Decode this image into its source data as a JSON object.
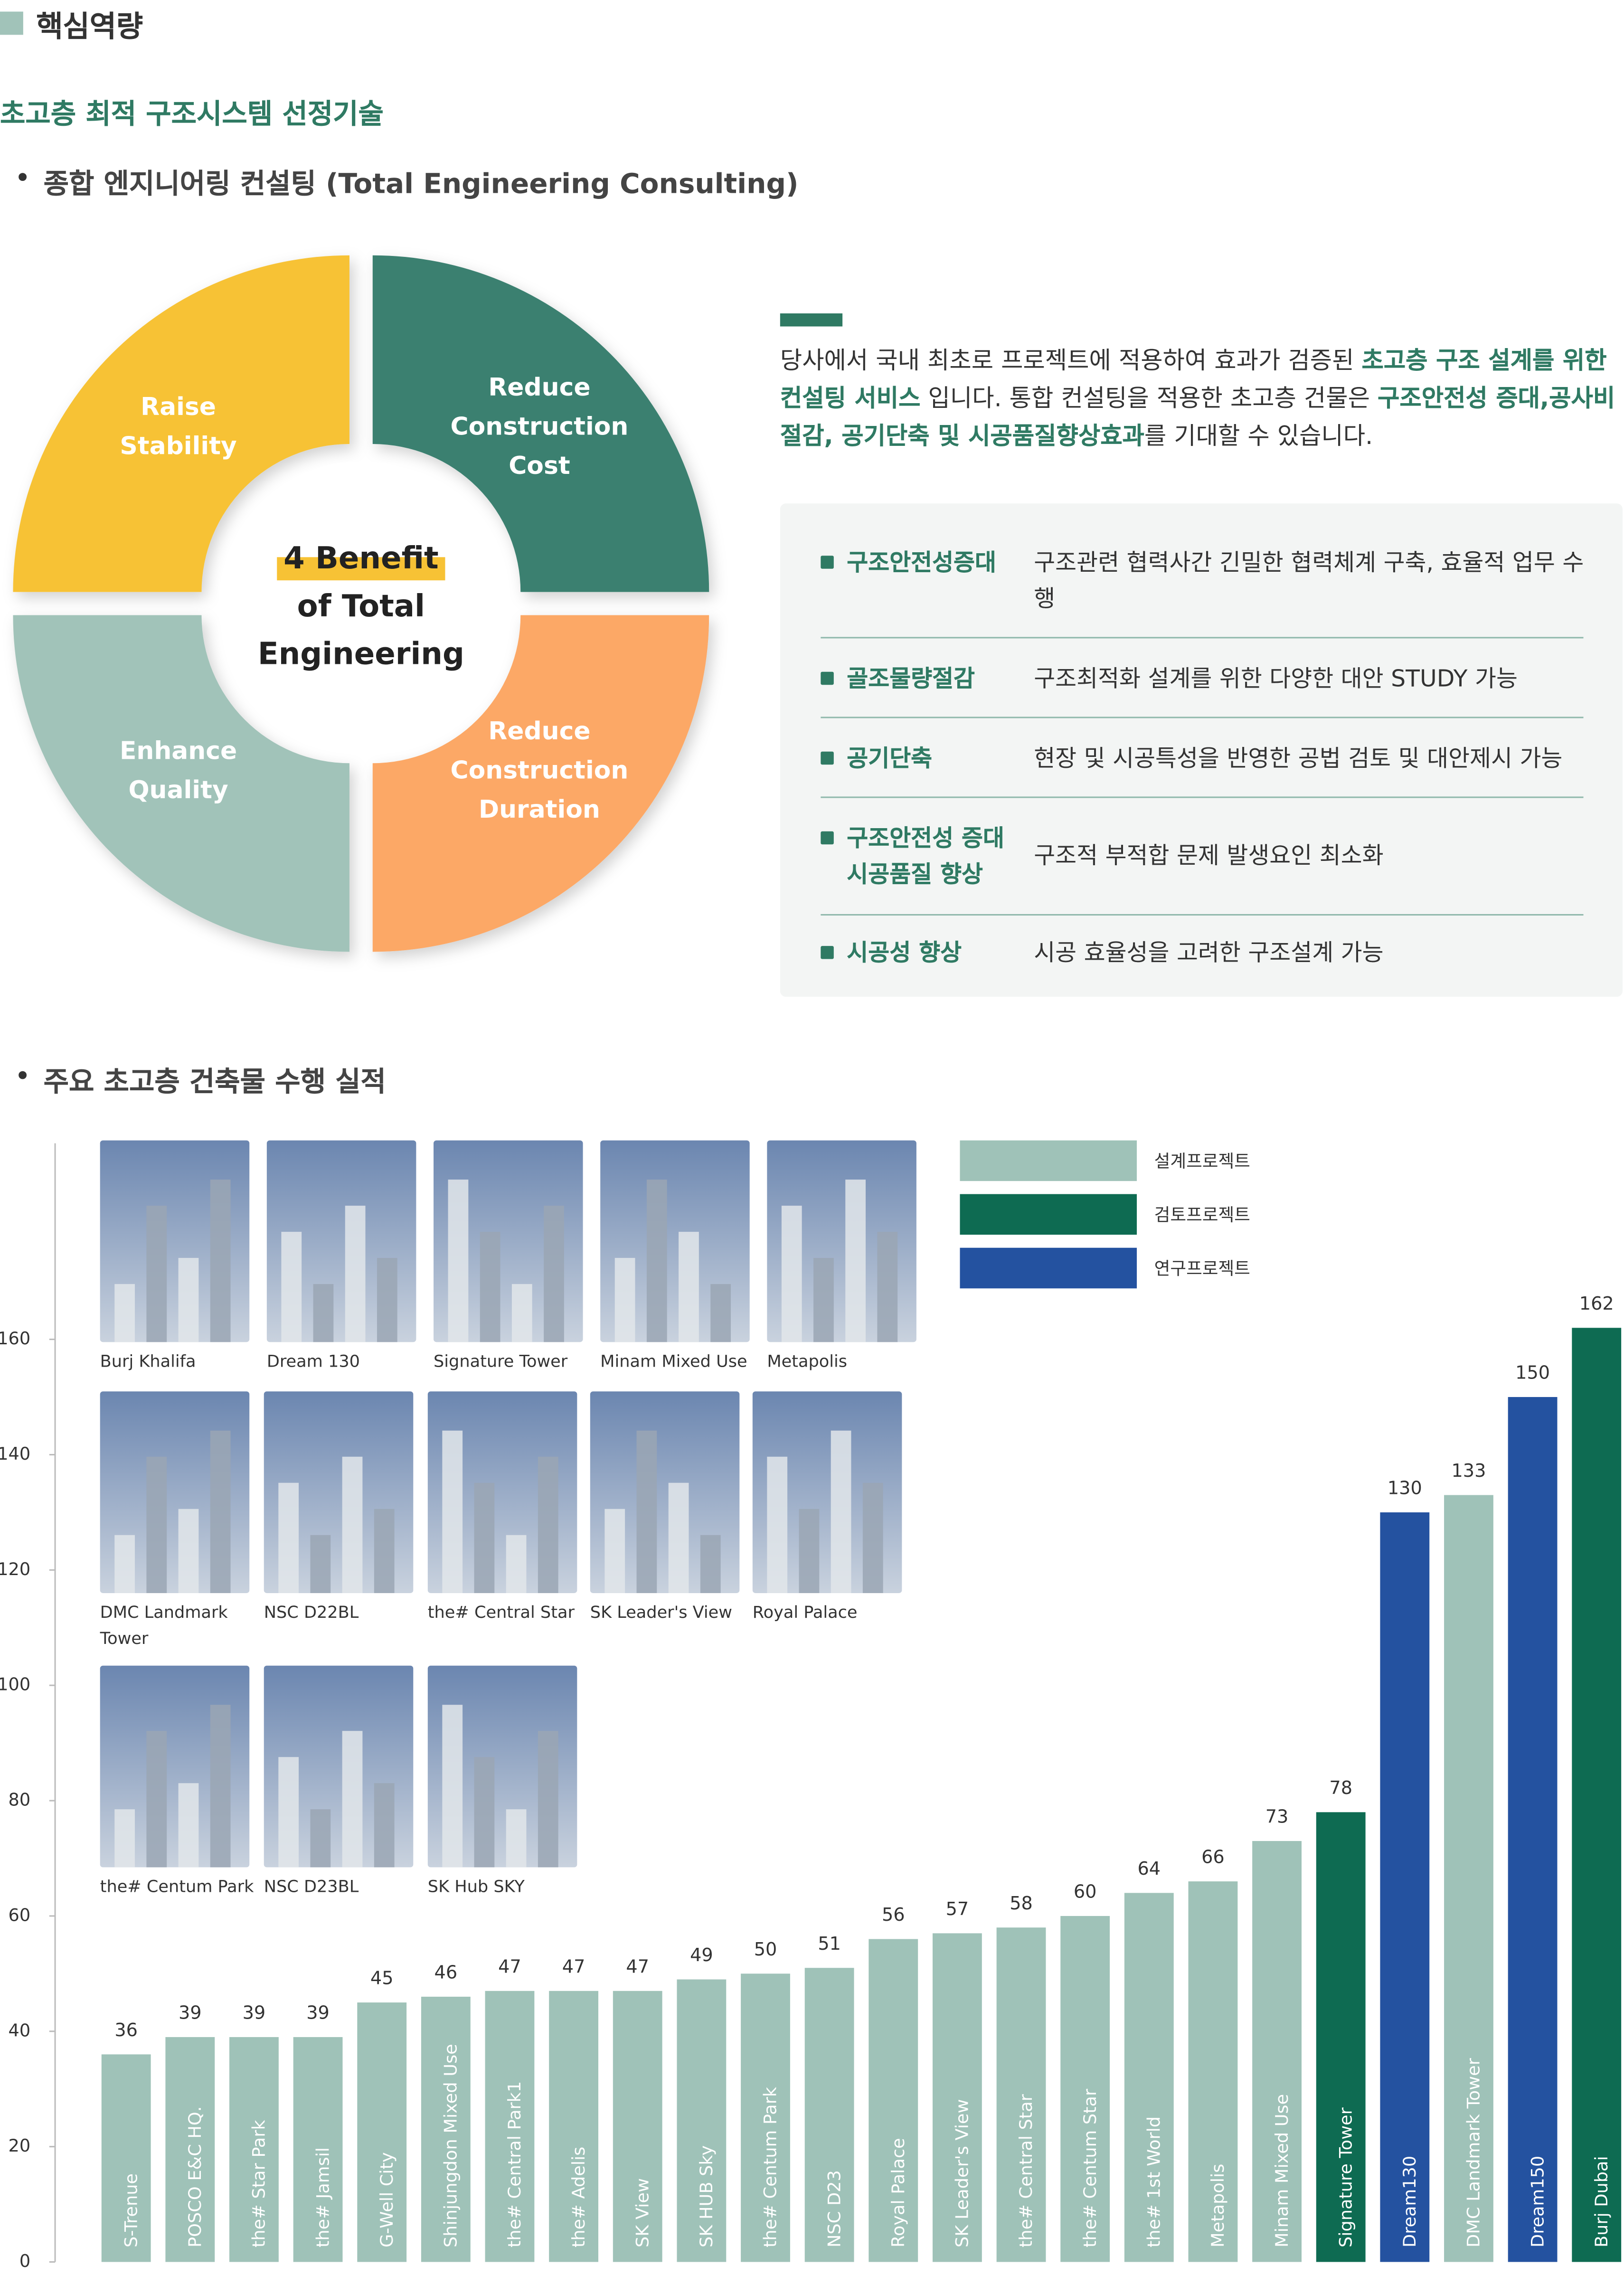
{
  "header": {
    "title": "핵심역량",
    "subtitle": "초고층 최적 구조시스템 선정기술",
    "section1": "종합 엔지니어링 컨설팅 (Total Engineering Consulting)",
    "section2": "주요 초고층 건축물 수행 실적"
  },
  "donut": {
    "center": [
      "4 Benefit",
      "of Total",
      "Engineering"
    ],
    "segments": [
      {
        "lines": [
          "Raise",
          "Stability"
        ]
      },
      {
        "lines": [
          "Reduce",
          "Construction",
          "Cost"
        ]
      },
      {
        "lines": [
          "Reduce",
          "Construction",
          "Duration"
        ]
      },
      {
        "lines": [
          "Enhance",
          "Quality"
        ]
      }
    ]
  },
  "paragraph": [
    "당사에서 국내 최초로 프로젝트에 적용하여 효과가 검증된 ",
    "초고층 구조 설계를 위한 컨설팅 서비스",
    " 입니다. 통합 컨설팅을 적용한 초고층 건물은 ",
    "구조안전성 증대,공사비 절감, 공기단축 및 시공품질향상효과",
    "를 기대할 수 있습니다."
  ],
  "table": {
    "rows": [
      {
        "label": "구조안전성증대",
        "desc": "구조관련 협력사간 긴밀한 협력체계 구축, 효율적 업무 수행"
      },
      {
        "label": "골조물량절감",
        "desc": "구조최적화 설계를 위한 다양한 대안 STUDY 가능"
      },
      {
        "label": "공기단축",
        "desc": "현장 및 시공특성을 반영한 공법 검토 및 대안제시 가능"
      },
      {
        "label": "구조안전성 증대\n시공품질 향상",
        "desc": "구조적 부적합 문제 발생요인 최소화"
      },
      {
        "label": "시공성 향상",
        "desc": "시공 효율성을 고려한 구조설계 가능"
      }
    ]
  },
  "gallery": [
    {
      "label": "Burj Khalifa"
    },
    {
      "label": "Dream 130"
    },
    {
      "label": "Signature Tower"
    },
    {
      "label": "Minam Mixed Use"
    },
    {
      "label": "Metapolis"
    },
    {
      "label": "DMC Landmark Tower"
    },
    {
      "label": "NSC D22BL"
    },
    {
      "label": "the# Central Star"
    },
    {
      "label": "SK Leader's View"
    },
    {
      "label": "Royal Palace"
    },
    {
      "label": "the# Centum Park"
    },
    {
      "label": "NSC D23BL"
    },
    {
      "label": "SK Hub SKY"
    }
  ],
  "chart_data": {
    "type": "bar",
    "categories": [
      "S-Trenue",
      "POSCO E&C HQ.",
      "the# Star Park",
      "the# Jamsil",
      "G-Well City",
      "Shinjungdon Mixed Use",
      "the# Central Park1",
      "the# Adelis",
      "SK View",
      "SK HUB Sky",
      "the# Centum Park",
      "NSC D23",
      "Royal Palace",
      "SK Leader's View",
      "the# Central Star",
      "the# Centum Star",
      "the# 1st World",
      "Metapolis",
      "Minam Mixed Use",
      "Signature Tower",
      "Dream130",
      "DMC Landmark Tower",
      "Dream150",
      "Burj Dubai"
    ],
    "series": [
      {
        "name": "설계프로젝트",
        "color": "#9fc2b8",
        "values": [
          36,
          39,
          39,
          39,
          45,
          46,
          47,
          47,
          47,
          49,
          50,
          51,
          56,
          57,
          58,
          60,
          64,
          66,
          73,
          null,
          null,
          133,
          null,
          null
        ]
      },
      {
        "name": "검토프로젝트",
        "color": "#0e6b52",
        "values": [
          null,
          null,
          null,
          null,
          null,
          null,
          null,
          null,
          null,
          null,
          null,
          null,
          null,
          null,
          null,
          null,
          null,
          null,
          null,
          78,
          null,
          null,
          null,
          162
        ]
      },
      {
        "name": "연구프로젝트",
        "color": "#2452a0",
        "values": [
          null,
          null,
          null,
          null,
          null,
          null,
          null,
          null,
          null,
          null,
          null,
          null,
          null,
          null,
          null,
          null,
          null,
          null,
          null,
          null,
          130,
          null,
          150,
          null
        ]
      }
    ],
    "ylim": [
      0,
      194
    ],
    "yticks": [
      0,
      20,
      40,
      60,
      80,
      100,
      120,
      140,
      160
    ]
  }
}
